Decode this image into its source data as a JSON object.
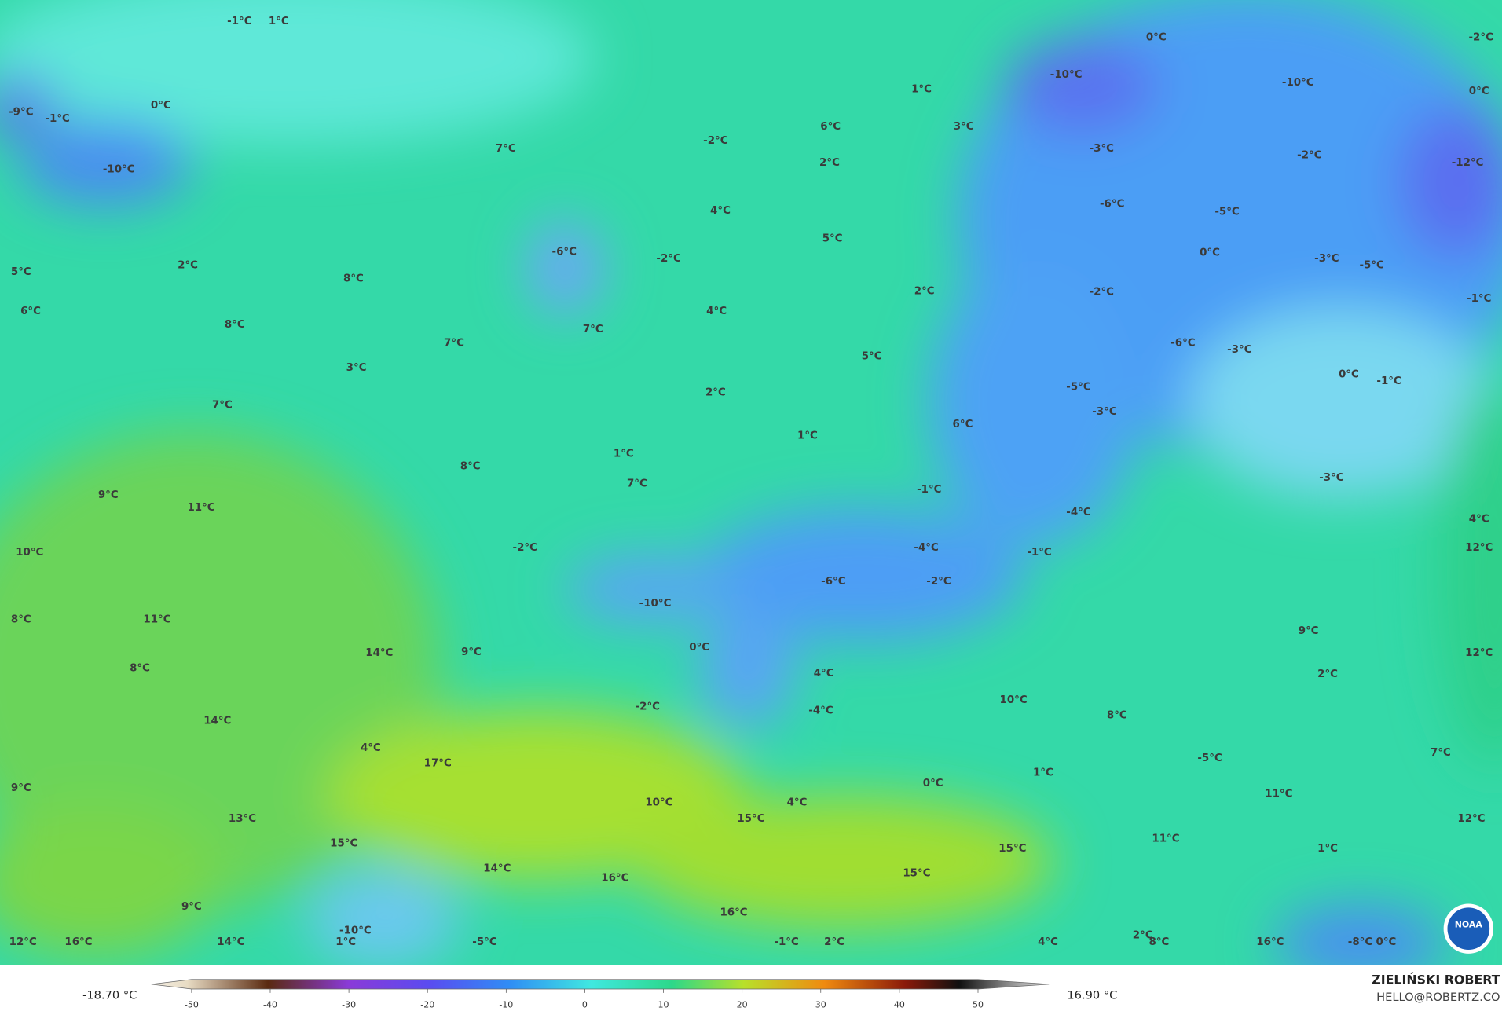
{
  "map": {
    "labels": [
      "-1°C",
      "1°C",
      "0°C",
      "-9°C",
      "-1°C",
      "-10°C",
      "7°C",
      "2°C",
      "5°C",
      "6°C",
      "8°C",
      "8°C",
      "7°C",
      "3°C",
      "7°C",
      "8°C",
      "9°C",
      "11°C",
      "10°C",
      "8°C",
      "11°C",
      "14°C",
      "9°C",
      "8°C",
      "14°C",
      "4°C",
      "17°C",
      "9°C",
      "13°C",
      "15°C",
      "14°C",
      "9°C",
      "12°C",
      "16°C",
      "14°C",
      "-10°C",
      "1°C",
      "-5°C",
      "16°C",
      "10°C",
      "15°C",
      "16°C",
      "-1°C",
      "2°C",
      "15°C",
      "15°C",
      "4°C",
      "2°C",
      "8°C",
      "16°C",
      "-8°C",
      "0°C",
      "-2°C",
      "6°C",
      "2°C",
      "1°C",
      "3°C",
      "4°C",
      "5°C",
      "-6°C",
      "-2°C",
      "4°C",
      "7°C",
      "2°C",
      "5°C",
      "2°C",
      "1°C",
      "1°C",
      "7°C",
      "-2°C",
      "-10°C",
      "0°C",
      "-2°C",
      "4°C",
      "-4°C",
      "-6°C",
      "-2°C",
      "-4°C",
      "-1°C",
      "6°C",
      "-1°C",
      "-4°C",
      "10°C",
      "8°C",
      "1°C",
      "0°C",
      "4°C",
      "0°C",
      "-10°C",
      "-10°C",
      "0°C",
      "-2°C",
      "-3°C",
      "-2°C",
      "-12°C",
      "-6°C",
      "-5°C",
      "0°C",
      "-3°C",
      "-5°C",
      "-2°C",
      "-1°C",
      "-6°C",
      "-3°C",
      "0°C",
      "-1°C",
      "-5°C",
      "-3°C",
      "-3°C",
      "4°C",
      "12°C",
      "9°C",
      "12°C",
      "2°C",
      "7°C",
      "-5°C",
      "11°C",
      "12°C",
      "11°C",
      "1°C"
    ]
  },
  "colorbar": {
    "min_label": "-18.70 °C",
    "max_label": "16.90 °C",
    "ticks": [
      -50,
      -40,
      -30,
      -20,
      -10,
      0,
      10,
      20,
      30,
      40,
      50
    ]
  },
  "credit": {
    "name": "ZIELIŃSKI ROBERT",
    "email": "HELLO@ROBERTZ.CO"
  },
  "logo": {
    "text": "NOAA"
  }
}
